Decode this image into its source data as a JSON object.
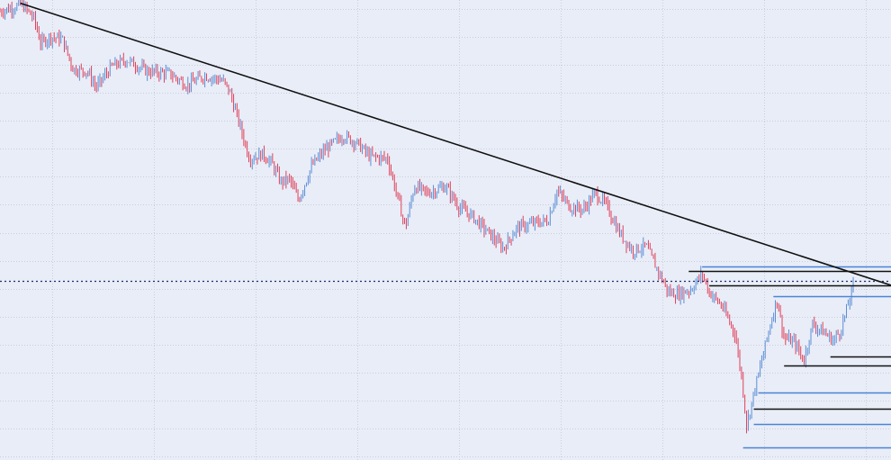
{
  "theme": {
    "background": "#e9edf7",
    "grid_color": "#c9cede",
    "up_color": "#5b8ed6",
    "down_color": "#e0415a",
    "trendline_color": "#111111",
    "level_blue": "#4a84d6",
    "level_black": "#111111",
    "current_price_line": "#1a2f6b"
  },
  "chart_data": {
    "type": "line",
    "subtype": "candlestick-price-chart",
    "grid": true,
    "x_gridlines": 9,
    "y_gridlines": 17,
    "ylim": [
      0,
      100
    ],
    "xlim": [
      0,
      100
    ],
    "price_anchors": [
      [
        0,
        97.5
      ],
      [
        2.5,
        99.0
      ],
      [
        3.8,
        96.0
      ],
      [
        4.6,
        90.5
      ],
      [
        5.6,
        92.0
      ],
      [
        7.0,
        91.5
      ],
      [
        8.2,
        85.0
      ],
      [
        9.8,
        84.5
      ],
      [
        10.8,
        81.0
      ],
      [
        12.5,
        85.5
      ],
      [
        14.2,
        87.0
      ],
      [
        16.5,
        84.5
      ],
      [
        19.0,
        84.0
      ],
      [
        21.0,
        81.5
      ],
      [
        23.0,
        83.5
      ],
      [
        25.0,
        82.5
      ],
      [
        25.8,
        80.0
      ],
      [
        26.8,
        73.5
      ],
      [
        28.0,
        65.5
      ],
      [
        29.5,
        66.5
      ],
      [
        30.5,
        64.5
      ],
      [
        31.5,
        60.5
      ],
      [
        32.5,
        61.0
      ],
      [
        33.5,
        56.5
      ],
      [
        35.0,
        64.0
      ],
      [
        36.5,
        67.5
      ],
      [
        38.5,
        70.5
      ],
      [
        40.0,
        69.0
      ],
      [
        41.5,
        66.0
      ],
      [
        43.5,
        65.5
      ],
      [
        44.5,
        58.0
      ],
      [
        45.5,
        50.5
      ],
      [
        46.5,
        59.5
      ],
      [
        48.0,
        58.0
      ],
      [
        50.0,
        59.5
      ],
      [
        51.5,
        55.0
      ],
      [
        53.0,
        53.0
      ],
      [
        54.5,
        50.0
      ],
      [
        55.5,
        48.0
      ],
      [
        56.5,
        46.0
      ],
      [
        58.0,
        50.5
      ],
      [
        60.0,
        51.5
      ],
      [
        61.5,
        52.0
      ],
      [
        62.5,
        58.5
      ],
      [
        64.0,
        55.0
      ],
      [
        65.5,
        54.5
      ],
      [
        66.8,
        58.0
      ],
      [
        68.0,
        55.5
      ],
      [
        69.5,
        49.5
      ],
      [
        71.0,
        45.5
      ],
      [
        72.5,
        46.5
      ],
      [
        74.0,
        40.5
      ],
      [
        75.0,
        36.5
      ],
      [
        76.0,
        36.0
      ],
      [
        77.5,
        37.0
      ],
      [
        78.8,
        40.5
      ],
      [
        79.6,
        36.5
      ],
      [
        81.0,
        33.5
      ],
      [
        82.5,
        27.5
      ],
      [
        83.3,
        17.0
      ],
      [
        83.8,
        7.5
      ],
      [
        84.6,
        14.5
      ],
      [
        85.3,
        20.0
      ],
      [
        86.2,
        27.5
      ],
      [
        87.2,
        35.0
      ],
      [
        88.0,
        26.5
      ],
      [
        89.2,
        25.5
      ],
      [
        90.2,
        21.5
      ],
      [
        91.2,
        29.5
      ],
      [
        92.3,
        28.0
      ],
      [
        93.5,
        26.0
      ],
      [
        94.3,
        28.0
      ],
      [
        95.0,
        32.5
      ],
      [
        95.8,
        38.0
      ]
    ],
    "trendline": {
      "from": [
        2.3,
        99.3
      ],
      "to": [
        100,
        38.0
      ]
    },
    "current_price": 39.0,
    "levels": [
      {
        "y": 42.0,
        "x_start": 78.8,
        "color": "blue"
      },
      {
        "y": 41.0,
        "x_start": 77.3,
        "color": "black"
      },
      {
        "y": 38.0,
        "x_start": 79.6,
        "color": "black"
      },
      {
        "y": 35.6,
        "x_start": 86.8,
        "color": "blue"
      },
      {
        "y": 22.5,
        "x_start": 93.2,
        "color": "black"
      },
      {
        "y": 20.5,
        "x_start": 88.0,
        "color": "black"
      },
      {
        "y": 14.7,
        "x_start": 85.1,
        "color": "blue"
      },
      {
        "y": 11.1,
        "x_start": 84.6,
        "color": "black"
      },
      {
        "y": 7.8,
        "x_start": 84.6,
        "color": "blue"
      },
      {
        "y": 2.8,
        "x_start": 83.4,
        "color": "blue"
      }
    ]
  }
}
